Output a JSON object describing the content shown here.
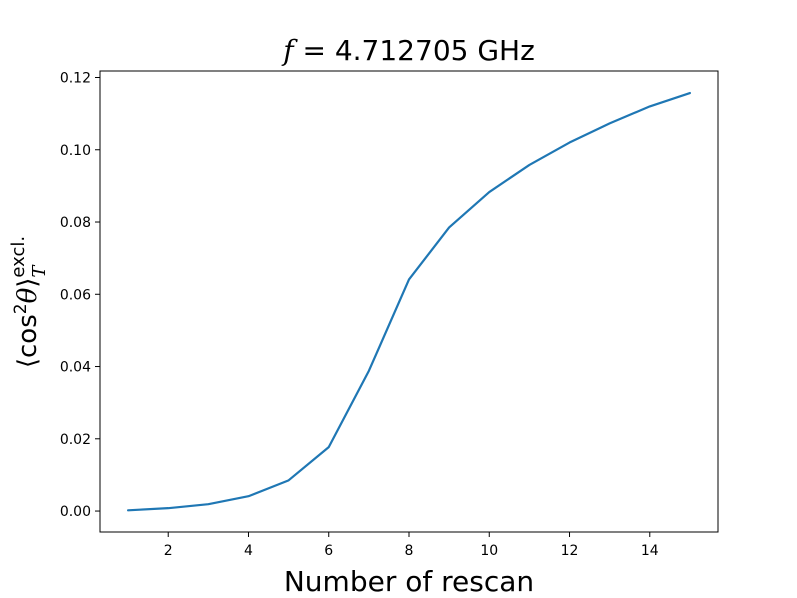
{
  "chart_data": {
    "type": "line",
    "title": {
      "variable": "f",
      "text": " = 4.712705 GHz"
    },
    "xlabel": "Number of rescan",
    "ylabel": {
      "open": "⟨cos",
      "sup": "2",
      "theta": "θ",
      "close": "⟩",
      "subscript": "T",
      "superscript": "excl."
    },
    "xlim": [
      0.3,
      15.7
    ],
    "ylim": [
      -0.0058,
      0.1218
    ],
    "xticks": [
      2,
      4,
      6,
      8,
      10,
      12,
      14
    ],
    "yticks": [
      0.0,
      0.02,
      0.04,
      0.06,
      0.08,
      0.1,
      0.12
    ],
    "ytick_labels": [
      "0.00",
      "0.02",
      "0.04",
      "0.06",
      "0.08",
      "0.10",
      "0.12"
    ],
    "line_color": "#1f77b4",
    "grid": false,
    "legend": "none",
    "series": [
      {
        "x": [
          1,
          2,
          3,
          4,
          5,
          6,
          7,
          8,
          9,
          10,
          11,
          12,
          13,
          14,
          15
        ],
        "y": [
          0.0002,
          0.0008,
          0.0019,
          0.0041,
          0.0085,
          0.0177,
          0.0388,
          0.0641,
          0.0785,
          0.0883,
          0.0958,
          0.102,
          0.1073,
          0.112,
          0.1157
        ]
      }
    ]
  }
}
